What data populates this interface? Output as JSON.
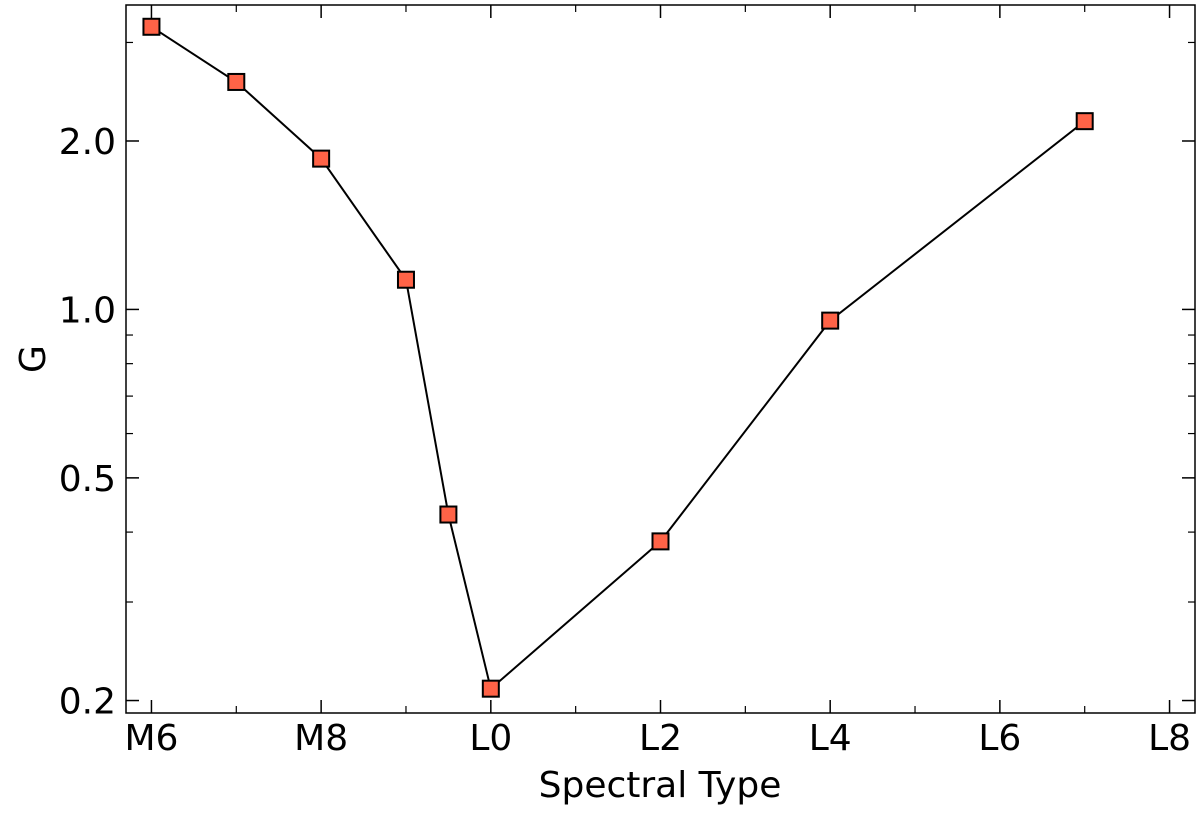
{
  "chart_data": {
    "type": "line",
    "xlabel": "Spectral Type",
    "ylabel": "G",
    "y_scale": "log",
    "xlim": [
      5.7,
      18.3
    ],
    "ylim": [
      0.19,
      3.5
    ],
    "x_ticks": [
      {
        "value": 6,
        "label": "M6"
      },
      {
        "value": 8,
        "label": "M8"
      },
      {
        "value": 10,
        "label": "L0"
      },
      {
        "value": 12,
        "label": "L2"
      },
      {
        "value": 14,
        "label": "L4"
      },
      {
        "value": 16,
        "label": "L6"
      },
      {
        "value": 18,
        "label": "L8"
      }
    ],
    "x_minor_ticks": [
      7,
      9,
      11,
      13,
      15,
      17
    ],
    "y_ticks": [
      {
        "value": 0.2,
        "label": "0.2"
      },
      {
        "value": 0.5,
        "label": "0.5"
      },
      {
        "value": 1.0,
        "label": "1.0"
      },
      {
        "value": 2.0,
        "label": "2.0"
      }
    ],
    "y_minor_ticks": [
      0.3,
      0.4,
      0.6,
      0.7,
      0.8,
      0.9,
      3.0
    ],
    "series": [
      {
        "x": [
          "M6",
          "M7",
          "M8",
          "M9",
          "M9.5",
          "L0",
          "L2",
          "L4",
          "L7"
        ],
        "x_numeric": [
          6,
          7,
          8,
          9,
          9.5,
          10,
          12,
          14,
          17
        ],
        "values": [
          3.2,
          2.55,
          1.86,
          1.13,
          0.43,
          0.21,
          0.385,
          0.955,
          2.17
        ],
        "marker": "square",
        "marker_color": "#ff6347",
        "line_color": "#000000"
      }
    ],
    "grid": false
  }
}
